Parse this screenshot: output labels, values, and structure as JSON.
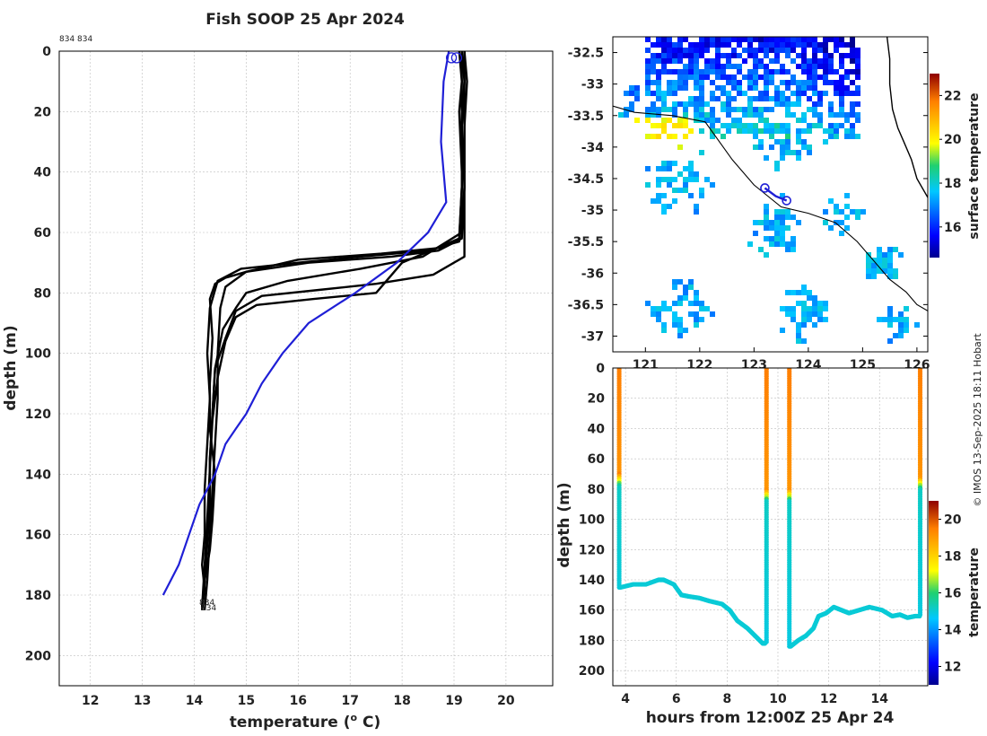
{
  "title": "Fish SOOP 25 Apr 2024",
  "credit": "© IMOS 13-Sep-2025 18:11 Hobart",
  "colors": {
    "profile_line": "#000000",
    "climatology_line": "#1f1fd6",
    "coast": "#000000",
    "track": "#1f1fd6"
  },
  "chart_data": [
    {
      "type": "line",
      "panel": "profile",
      "xlabel": "temperature (o C)",
      "xlabel_main": "temperature (",
      "xlabel_sup": "o",
      "xlabel_end": " C)",
      "ylabel": "depth (m)",
      "xlim": [
        11.4,
        20.9
      ],
      "ylim": [
        210,
        0
      ],
      "xticks": [
        "12",
        "13",
        "14",
        "15",
        "16",
        "17",
        "18",
        "19",
        "20"
      ],
      "yticks": [
        "0",
        "20",
        "40",
        "60",
        "80",
        "100",
        "120",
        "140",
        "160",
        "180",
        "200"
      ],
      "top_label": "834 834",
      "end_labels": [
        "834",
        "834"
      ],
      "grid": true,
      "series": [
        {
          "name": "profile 1",
          "x": [
            19.1,
            19.15,
            19.1,
            19.15,
            19.15,
            19.1,
            18.5,
            17.2,
            16.0,
            14.9,
            14.45,
            14.3,
            14.25,
            14.3,
            14.25,
            14.2,
            14.2,
            14.15,
            14.2,
            14.15
          ],
          "y": [
            0,
            10,
            20,
            40,
            55,
            63,
            66,
            68,
            70,
            72,
            76,
            85,
            100,
            115,
            130,
            145,
            160,
            170,
            178,
            185
          ]
        },
        {
          "name": "profile 2",
          "x": [
            19.2,
            19.25,
            19.2,
            19.2,
            19.15,
            18.7,
            17.8,
            16.2,
            15.0,
            14.6,
            14.4,
            14.3,
            14.35,
            14.3,
            14.3,
            14.4,
            14.35,
            14.3,
            14.2,
            14.15
          ],
          "y": [
            0,
            10,
            25,
            45,
            62,
            66,
            68,
            70,
            73,
            75,
            77,
            82,
            95,
            110,
            125,
            140,
            155,
            165,
            175,
            184
          ]
        },
        {
          "name": "profile 3",
          "x": [
            19.2,
            19.2,
            19.15,
            19.15,
            19.1,
            18.8,
            17.6,
            16.0,
            15.0,
            14.6,
            14.5,
            14.45,
            14.45,
            14.4,
            14.35,
            14.3,
            14.25,
            14.2
          ],
          "y": [
            0,
            10,
            25,
            45,
            62,
            65,
            67,
            69,
            73,
            78,
            85,
            100,
            115,
            130,
            145,
            160,
            175,
            185
          ]
        },
        {
          "name": "profile 4",
          "x": [
            19.15,
            19.15,
            19.15,
            19.2,
            19.15,
            18.4,
            17.2,
            15.8,
            15.0,
            14.8,
            14.55,
            14.4,
            14.35,
            14.3,
            14.3,
            14.25,
            14.2,
            14.15
          ],
          "y": [
            0,
            10,
            25,
            45,
            60,
            68,
            72,
            76,
            80,
            85,
            92,
            105,
            120,
            135,
            150,
            162,
            175,
            184
          ]
        },
        {
          "name": "profile 5",
          "x": [
            19.2,
            19.2,
            19.2,
            19.2,
            19.2,
            18.6,
            17.5,
            16.4,
            15.3,
            14.8,
            14.6,
            14.4,
            14.35,
            14.3,
            14.3,
            14.25,
            14.2,
            14.15
          ],
          "y": [
            0,
            10,
            25,
            45,
            68,
            74,
            77,
            79,
            81,
            86,
            95,
            105,
            120,
            135,
            150,
            163,
            176,
            185
          ]
        },
        {
          "name": "profile 6",
          "x": [
            19.15,
            19.2,
            19.15,
            19.15,
            19.1,
            18.0,
            17.5,
            16.3,
            15.2,
            14.8,
            14.6,
            14.45,
            14.35,
            14.3,
            14.25,
            14.2,
            14.15
          ],
          "y": [
            0,
            10,
            25,
            45,
            62,
            70,
            80,
            82,
            84,
            88,
            96,
            108,
            122,
            138,
            155,
            170,
            184
          ]
        }
      ],
      "climatology": {
        "name": "climatology",
        "x": [
          18.9,
          18.8,
          18.75,
          18.85,
          18.5,
          17.9,
          17.1,
          16.2,
          15.7,
          15.3,
          15.0,
          14.8,
          14.6,
          14.4,
          14.1,
          13.9,
          13.7,
          13.55,
          13.4
        ],
        "y": [
          0,
          10,
          30,
          50,
          60,
          70,
          80,
          90,
          100,
          110,
          120,
          125,
          130,
          140,
          150,
          160,
          170,
          175,
          180
        ]
      },
      "start_markers": [
        {
          "x": 18.95,
          "y": 1
        },
        {
          "x": 19.05,
          "y": 1
        }
      ]
    },
    {
      "type": "heatmap",
      "panel": "map",
      "xlim": [
        120.4,
        126.2
      ],
      "ylim": [
        -37.25,
        -32.25
      ],
      "xticks": [
        "121",
        "122",
        "123",
        "124",
        "125",
        "126"
      ],
      "yticks": [
        "-32.5",
        "-33",
        "-33.5",
        "-34",
        "-34.5",
        "-35",
        "-35.5",
        "-36",
        "-36.5",
        "-37"
      ],
      "colorbar_label": "surface temperature",
      "colorbar_ticks": [
        "16",
        "18",
        "20",
        "22"
      ],
      "colorbar_range": [
        14.6,
        23.0
      ],
      "track": {
        "lon": [
          123.2,
          123.4,
          123.6
        ],
        "lat": [
          -34.65,
          -34.78,
          -34.85
        ]
      },
      "coast": {
        "lon": [
          125.45,
          125.5,
          125.5,
          125.55,
          125.65,
          125.75,
          125.9,
          126.0,
          126.2
        ],
        "lat": [
          -32.25,
          -32.6,
          -33.0,
          -33.4,
          -33.7,
          -33.9,
          -34.2,
          -34.5,
          -34.8
        ]
      },
      "shelf_edge": {
        "lon": [
          120.4,
          120.8,
          121.5,
          122.1,
          122.6,
          123.0,
          123.5,
          124.0,
          124.5,
          124.9,
          125.2,
          125.5,
          125.8,
          126.0,
          126.2
        ],
        "lat": [
          -33.35,
          -33.45,
          -33.5,
          -33.6,
          -34.2,
          -34.6,
          -34.95,
          -35.05,
          -35.2,
          -35.5,
          -35.8,
          -36.1,
          -36.3,
          -36.5,
          -36.6
        ]
      }
    },
    {
      "type": "scatter",
      "panel": "section",
      "xlabel": "hours from 12:00Z 25 Apr 24",
      "ylabel": "depth (m)",
      "xlim": [
        3.5,
        15.9
      ],
      "ylim": [
        210,
        0
      ],
      "xticks": [
        "4",
        "6",
        "8",
        "10",
        "12",
        "14"
      ],
      "yticks": [
        "0",
        "20",
        "40",
        "60",
        "80",
        "100",
        "120",
        "140",
        "160",
        "180",
        "200"
      ],
      "colorbar_label": "temperature",
      "colorbar_ticks": [
        "12",
        "14",
        "16",
        "18",
        "20"
      ],
      "colorbar_range": [
        11.0,
        21.0
      ],
      "casts": [
        {
          "t": 3.75,
          "max_depth": 145,
          "thermocline": 70
        },
        {
          "t": 9.55,
          "max_depth": 182,
          "thermocline": 80
        },
        {
          "t": 10.45,
          "max_depth": 184,
          "thermocline": 80
        },
        {
          "t": 15.6,
          "max_depth": 164,
          "thermocline": 72
        }
      ],
      "bottom": [
        {
          "t": [
            3.8,
            4.3,
            4.8,
            5.3,
            5.5,
            5.9,
            6.2,
            6.5,
            6.9,
            7.3,
            7.8,
            8.1,
            8.4,
            8.8,
            9.1,
            9.4,
            9.5
          ],
          "depth": [
            145,
            143,
            143,
            140,
            140,
            143,
            150,
            151,
            152,
            154,
            156,
            160,
            167,
            172,
            177,
            182,
            182
          ]
        },
        {
          "t": [
            10.5,
            10.8,
            11.1,
            11.4,
            11.6,
            11.9,
            12.2,
            12.5,
            12.8,
            13.2,
            13.6,
            14.1,
            14.5,
            14.8,
            15.1,
            15.4,
            15.6
          ],
          "depth": [
            184,
            180,
            177,
            172,
            164,
            162,
            158,
            160,
            162,
            160,
            158,
            160,
            164,
            163,
            165,
            164,
            164
          ]
        }
      ]
    }
  ]
}
